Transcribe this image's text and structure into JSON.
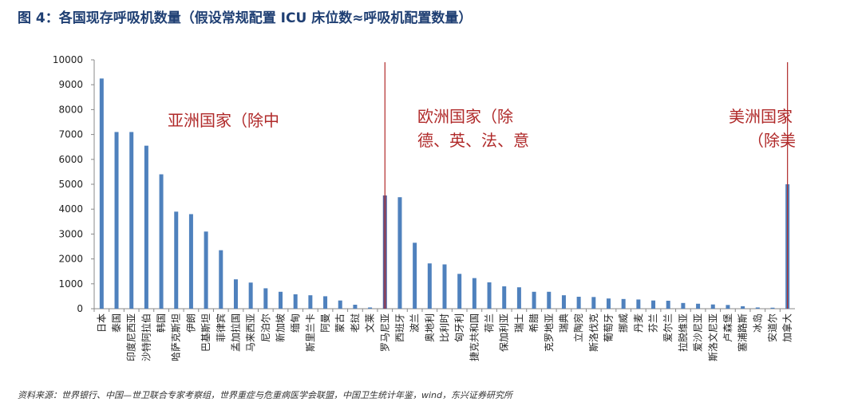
{
  "figure": {
    "title": "图 4：各国现存呼吸机数量（假设常规配置 ICU 床位数≈呼吸机配置数量）",
    "source": "资料来源：世界银行、中国—世卫联合专家考察组，世界重症与危重病医学会联盟，中国卫生统计年鉴，wind，东兴证券研究所"
  },
  "chart_data": {
    "type": "bar",
    "ylim": [
      0,
      10000
    ],
    "yticks": [
      "0",
      "1000",
      "2000",
      "3000",
      "4000",
      "5000",
      "6000",
      "7000",
      "8000",
      "9000",
      "10000"
    ],
    "bar_color": "#4f81bd",
    "highlight_color": "#5b5f97",
    "categories": [
      "日本",
      "泰国",
      "印度尼西亚",
      "沙特阿拉伯",
      "韩国",
      "哈萨克斯坦",
      "伊朗",
      "巴基斯坦",
      "菲律宾",
      "孟加拉国",
      "马来西亚",
      "尼泊尔",
      "新加坡",
      "缅甸",
      "斯里兰卡",
      "阿曼",
      "蒙古",
      "老挝",
      "文莱",
      "罗马尼亚",
      "西班牙",
      "波兰",
      "奥地利",
      "比利时",
      "匈牙利",
      "捷克共和国",
      "荷兰",
      "保加利亚",
      "瑞士",
      "希腊",
      "克罗地亚",
      "瑞典",
      "立陶宛",
      "斯洛伐克",
      "葡萄牙",
      "挪威",
      "丹麦",
      "芬兰",
      "爱尔兰",
      "拉脱维亚",
      "爱沙尼亚",
      "斯洛文尼亚",
      "卢森堡",
      "塞浦路斯",
      "冰岛",
      "安道尔",
      "加拿大"
    ],
    "values": [
      9250,
      7100,
      7100,
      6550,
      5400,
      3900,
      3800,
      3100,
      2350,
      1180,
      1050,
      820,
      680,
      580,
      540,
      500,
      330,
      160,
      50,
      4550,
      4480,
      2650,
      1820,
      1780,
      1400,
      1230,
      1060,
      900,
      860,
      680,
      680,
      540,
      480,
      470,
      410,
      390,
      370,
      330,
      320,
      230,
      200,
      170,
      150,
      100,
      50,
      40,
      5000
    ],
    "highlight_index": 19,
    "annotations": [
      {
        "lines": [
          "亚洲国家（除中"
        ]
      },
      {
        "lines": [
          "欧洲国家（除",
          "德、英、法、意"
        ]
      },
      {
        "lines": [
          "美洲国家",
          "（除美"
        ]
      }
    ],
    "divider_color": "#b02a2a"
  }
}
